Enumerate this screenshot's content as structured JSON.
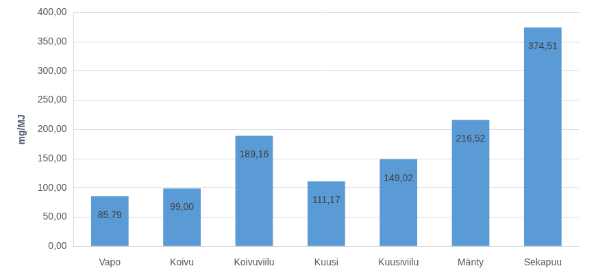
{
  "chart_data": {
    "type": "bar",
    "y_label": "mg/MJ",
    "categories": [
      "Vapo",
      "Koivu",
      "Koivuviilu",
      "Kuusi",
      "Kuusiviilu",
      "Mänty",
      "Sekapuu"
    ],
    "values": [
      85.79,
      99.0,
      189.16,
      111.17,
      149.02,
      216.52,
      374.51
    ],
    "value_labels": [
      "85,79",
      "99,00",
      "189,16",
      "111,17",
      "149,02",
      "216,52",
      "374,51"
    ],
    "data_labels": true,
    "color": "#5b9bd5",
    "ylim": [
      0,
      400
    ],
    "yticks": [
      {
        "value": 0,
        "label": "0,00"
      },
      {
        "value": 50,
        "label": "50,00"
      },
      {
        "value": 100,
        "label": "100,00"
      },
      {
        "value": 150,
        "label": "150,00"
      },
      {
        "value": 200,
        "label": "200,00"
      },
      {
        "value": 250,
        "label": "250,00"
      },
      {
        "value": 300,
        "label": "300,00"
      },
      {
        "value": 350,
        "label": "350,00"
      },
      {
        "value": 400,
        "label": "400,00"
      }
    ],
    "grid": true
  }
}
